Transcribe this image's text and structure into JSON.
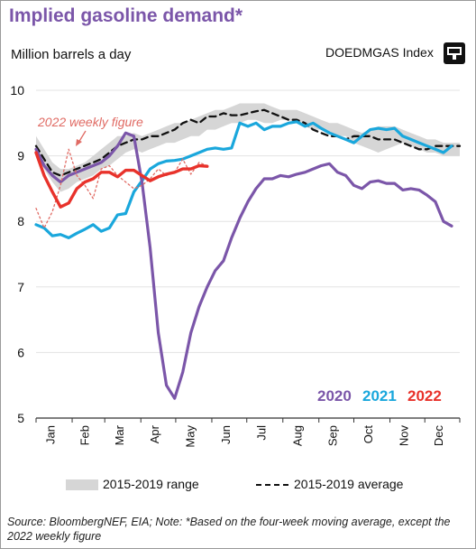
{
  "title": "Implied gasoline demand*",
  "units_label": "Million barrels a day",
  "ticker": "DOEDMGAS Index",
  "ticker_icon": "bloomberg-terminal-icon",
  "source_note": "Source: BloombergNEF, EIA; Note: *Based on the four-week moving average, except the 2022 weekly figure",
  "legend": {
    "range_label": "2015-2019 range",
    "average_label": "2015-2019 average"
  },
  "annotation": "2022 weekly figure",
  "chart_data": {
    "type": "line",
    "title": "Implied gasoline demand*",
    "ylabel": "Million barrels a day",
    "ylim": [
      5,
      10
    ],
    "yticks": [
      5,
      6,
      7,
      8,
      9,
      10
    ],
    "xlim": [
      0,
      52
    ],
    "x_unit": "week of year",
    "x_tick_labels": [
      "Jan",
      "Feb",
      "Mar",
      "Apr",
      "May",
      "Jun",
      "Jul",
      "Aug",
      "Sep",
      "Oct",
      "Nov",
      "Dec"
    ],
    "grid": "horizontal",
    "colors": {
      "2020": "#7b56a9",
      "2021": "#1aa7dc",
      "2022": "#e8322b",
      "range": "#d6d6d6",
      "average": "#111111",
      "weekly": "#e06a63"
    },
    "range_2015_2019": {
      "x": [
        0,
        1,
        2,
        3,
        4,
        5,
        6,
        7,
        8,
        9,
        10,
        11,
        12,
        13,
        14,
        15,
        16,
        17,
        18,
        19,
        20,
        21,
        22,
        23,
        24,
        25,
        26,
        27,
        28,
        29,
        30,
        31,
        32,
        33,
        34,
        35,
        36,
        37,
        38,
        39,
        40,
        41,
        42,
        43,
        44,
        45,
        46,
        47,
        48,
        49,
        50,
        51,
        52
      ],
      "low": [
        9.0,
        8.8,
        8.6,
        8.45,
        8.5,
        8.6,
        8.65,
        8.7,
        8.8,
        8.85,
        8.95,
        9.05,
        9.1,
        9.05,
        9.1,
        9.15,
        9.2,
        9.2,
        9.25,
        9.3,
        9.3,
        9.4,
        9.4,
        9.45,
        9.5,
        9.5,
        9.55,
        9.55,
        9.5,
        9.5,
        9.55,
        9.55,
        9.5,
        9.45,
        9.4,
        9.4,
        9.35,
        9.3,
        9.3,
        9.2,
        9.15,
        9.1,
        9.05,
        9.1,
        9.15,
        9.2,
        9.15,
        9.1,
        9.05,
        9.05,
        9.0,
        9.0,
        9.0
      ],
      "high": [
        9.3,
        9.1,
        8.9,
        8.8,
        8.8,
        8.85,
        8.9,
        9.0,
        9.1,
        9.2,
        9.3,
        9.3,
        9.35,
        9.3,
        9.35,
        9.4,
        9.45,
        9.5,
        9.5,
        9.55,
        9.6,
        9.65,
        9.7,
        9.7,
        9.75,
        9.8,
        9.8,
        9.8,
        9.8,
        9.75,
        9.7,
        9.7,
        9.7,
        9.65,
        9.6,
        9.55,
        9.5,
        9.5,
        9.45,
        9.4,
        9.35,
        9.4,
        9.45,
        9.45,
        9.45,
        9.4,
        9.35,
        9.3,
        9.25,
        9.25,
        9.2,
        9.2,
        9.2
      ]
    },
    "series": [
      {
        "name": "2015-2019 average",
        "x": [
          0,
          1,
          2,
          3,
          4,
          5,
          6,
          7,
          8,
          9,
          10,
          11,
          12,
          13,
          14,
          15,
          16,
          17,
          18,
          19,
          20,
          21,
          22,
          23,
          24,
          25,
          26,
          27,
          28,
          29,
          30,
          31,
          32,
          33,
          34,
          35,
          36,
          37,
          38,
          39,
          40,
          41,
          42,
          43,
          44,
          45,
          46,
          47,
          48,
          49,
          50,
          51,
          52
        ],
        "values": [
          9.15,
          8.95,
          8.75,
          8.7,
          8.75,
          8.8,
          8.85,
          8.9,
          8.95,
          9.05,
          9.15,
          9.2,
          9.25,
          9.25,
          9.3,
          9.3,
          9.35,
          9.4,
          9.5,
          9.55,
          9.5,
          9.6,
          9.6,
          9.65,
          9.62,
          9.62,
          9.65,
          9.68,
          9.7,
          9.65,
          9.6,
          9.55,
          9.55,
          9.5,
          9.4,
          9.35,
          9.3,
          9.3,
          9.25,
          9.3,
          9.3,
          9.3,
          9.25,
          9.25,
          9.25,
          9.2,
          9.15,
          9.1,
          9.1,
          9.15,
          9.15,
          9.15,
          9.15
        ]
      },
      {
        "name": "2020",
        "x": [
          0,
          1,
          2,
          3,
          4,
          5,
          6,
          7,
          8,
          9,
          10,
          11,
          12,
          13,
          14,
          15,
          16,
          17,
          18,
          19,
          20,
          21,
          22,
          23,
          24,
          25,
          26,
          27,
          28,
          29,
          30,
          31,
          32,
          33,
          34,
          35,
          36,
          37,
          38,
          39,
          40,
          41,
          42,
          43,
          44,
          45,
          46,
          47,
          48,
          49,
          50,
          51
        ],
        "values": [
          9.1,
          8.85,
          8.7,
          8.6,
          8.7,
          8.75,
          8.8,
          8.85,
          8.9,
          9.0,
          9.15,
          9.35,
          9.3,
          8.6,
          7.6,
          6.3,
          5.5,
          5.3,
          5.7,
          6.3,
          6.7,
          7.0,
          7.25,
          7.4,
          7.75,
          8.05,
          8.3,
          8.5,
          8.65,
          8.65,
          8.7,
          8.68,
          8.72,
          8.75,
          8.8,
          8.85,
          8.88,
          8.75,
          8.7,
          8.55,
          8.5,
          8.6,
          8.62,
          8.58,
          8.58,
          8.48,
          8.5,
          8.48,
          8.4,
          8.3,
          8.0,
          7.93
        ]
      },
      {
        "name": "2021",
        "x": [
          0,
          1,
          2,
          3,
          4,
          5,
          6,
          7,
          8,
          9,
          10,
          11,
          12,
          13,
          14,
          15,
          16,
          17,
          18,
          19,
          20,
          21,
          22,
          23,
          24,
          25,
          26,
          27,
          28,
          29,
          30,
          31,
          32,
          33,
          34,
          35,
          36,
          37,
          38,
          39,
          40,
          41,
          42,
          43,
          44,
          45,
          46,
          47,
          48,
          49,
          50,
          51
        ],
        "values": [
          7.95,
          7.9,
          7.78,
          7.8,
          7.75,
          7.82,
          7.88,
          7.95,
          7.85,
          7.9,
          8.1,
          8.12,
          8.45,
          8.62,
          8.8,
          8.88,
          8.92,
          8.93,
          8.95,
          9.0,
          9.05,
          9.1,
          9.12,
          9.1,
          9.12,
          9.5,
          9.45,
          9.5,
          9.4,
          9.45,
          9.45,
          9.5,
          9.52,
          9.45,
          9.5,
          9.42,
          9.35,
          9.3,
          9.25,
          9.2,
          9.3,
          9.4,
          9.42,
          9.4,
          9.42,
          9.3,
          9.25,
          9.2,
          9.15,
          9.1,
          9.05,
          9.15
        ]
      },
      {
        "name": "2022",
        "x": [
          0,
          1,
          2,
          3,
          4,
          5,
          6,
          7,
          8,
          9,
          10,
          11,
          12,
          13,
          14,
          15,
          16,
          17,
          18,
          19,
          20,
          21
        ],
        "values": [
          9.05,
          8.7,
          8.45,
          8.22,
          8.28,
          8.5,
          8.6,
          8.65,
          8.75,
          8.75,
          8.68,
          8.78,
          8.78,
          8.7,
          8.62,
          8.68,
          8.72,
          8.75,
          8.8,
          8.8,
          8.85,
          8.84
        ]
      },
      {
        "name": "2022 weekly figure",
        "x": [
          0,
          1,
          2,
          3,
          4,
          5,
          6,
          7,
          8,
          9,
          10,
          11,
          12,
          13,
          14,
          15,
          16,
          17,
          18,
          19,
          20,
          21
        ],
        "values": [
          8.2,
          7.9,
          8.15,
          8.55,
          9.1,
          8.7,
          8.55,
          8.35,
          8.8,
          8.85,
          8.7,
          8.6,
          8.5,
          8.55,
          8.65,
          8.8,
          8.7,
          8.75,
          8.95,
          8.72,
          8.9,
          8.85
        ]
      }
    ],
    "series_labels": [
      "2020",
      "2021",
      "2022"
    ]
  }
}
